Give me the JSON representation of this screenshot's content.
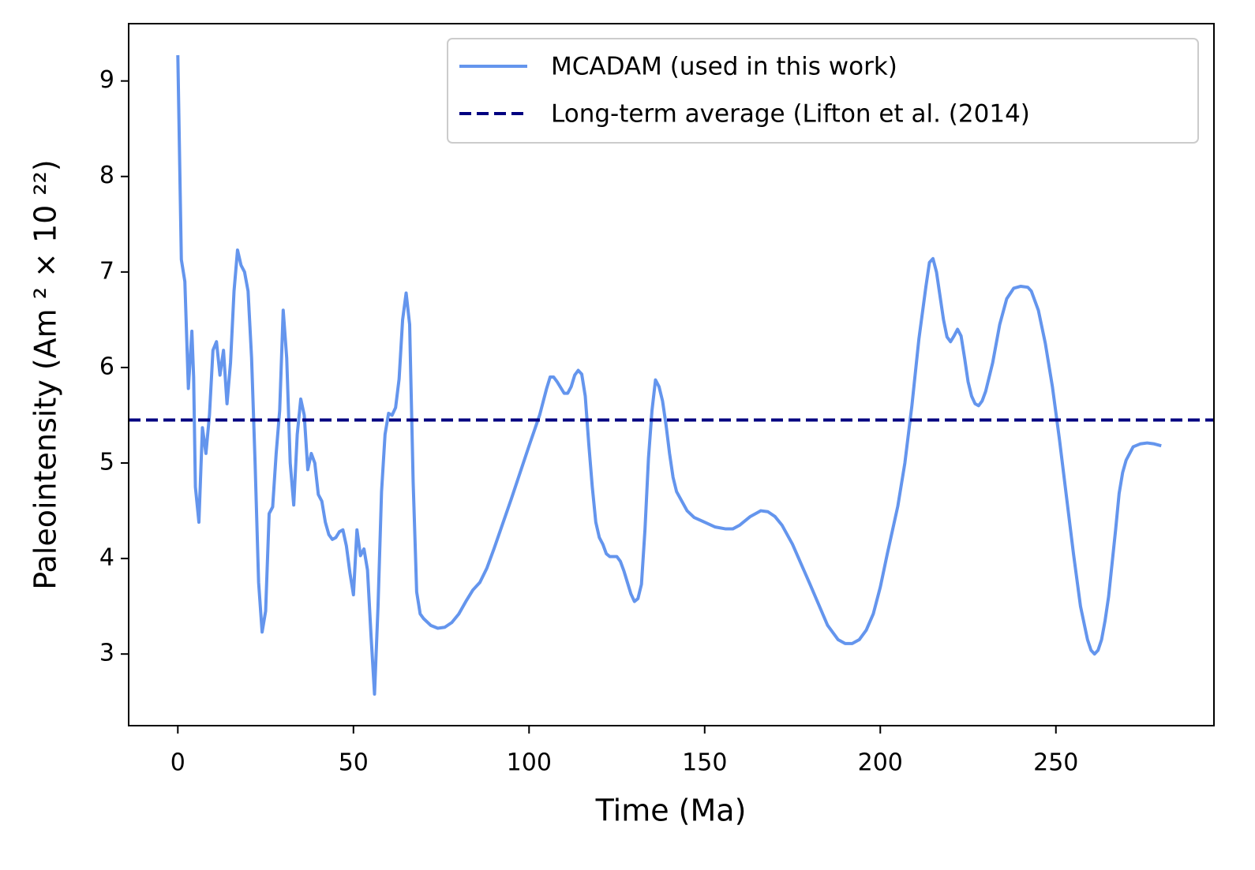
{
  "chart_data": {
    "type": "line",
    "xlabel": "Time (Ma)",
    "ylabel": "Paleointensity (Am ² × 10 ²²)",
    "x": [
      0,
      1,
      2,
      3,
      4,
      4.5,
      5,
      6,
      7,
      8,
      9,
      10,
      11,
      12,
      13,
      14,
      15,
      16,
      17,
      18,
      19,
      20,
      21,
      22,
      23,
      24,
      25,
      26,
      27,
      28,
      29,
      30,
      31,
      32,
      33,
      34,
      35,
      36,
      37,
      38,
      39,
      40,
      41,
      42,
      43,
      44,
      45,
      46,
      47,
      48,
      49,
      50,
      51,
      52,
      53,
      54,
      55,
      56,
      57,
      58,
      59,
      60,
      61,
      62,
      63,
      64,
      65,
      66,
      67,
      68,
      69,
      70,
      72,
      74,
      76,
      78,
      80,
      82,
      84,
      86,
      88,
      90,
      95,
      100,
      103,
      105,
      106,
      107,
      108,
      110,
      111,
      112,
      113,
      114,
      115,
      116,
      117,
      118,
      119,
      120,
      121,
      122,
      123,
      125,
      126,
      127,
      128,
      129,
      130,
      131,
      132,
      133,
      134,
      135,
      136,
      137,
      138,
      139,
      140,
      141,
      142,
      145,
      147,
      150,
      153,
      156,
      158,
      160,
      163,
      166,
      168,
      170,
      172,
      175,
      180,
      185,
      188,
      190,
      192,
      194,
      196,
      198,
      200,
      202,
      205,
      207,
      209,
      211,
      213,
      214,
      215,
      216,
      217,
      218,
      219,
      220,
      221,
      222,
      223,
      224,
      225,
      226,
      227,
      228,
      229,
      230,
      232,
      234,
      236,
      238,
      240,
      242,
      243,
      245,
      247,
      249,
      251,
      253,
      255,
      257,
      259,
      260,
      261,
      262,
      263,
      264,
      265,
      266,
      267,
      268,
      269,
      270,
      272,
      274,
      276,
      278,
      280
    ],
    "series": [
      {
        "name": "MCADAM (used in this work)",
        "color": "#6495ed",
        "values": [
          9.27,
          7.13,
          6.9,
          5.78,
          6.38,
          5.9,
          4.75,
          4.38,
          5.37,
          5.1,
          5.5,
          6.18,
          6.27,
          5.92,
          6.18,
          5.62,
          6.05,
          6.8,
          7.23,
          7.07,
          7.0,
          6.8,
          6.1,
          5.0,
          3.75,
          3.23,
          3.45,
          4.47,
          4.54,
          5.1,
          5.55,
          6.6,
          6.1,
          5.0,
          4.56,
          5.3,
          5.67,
          5.5,
          4.93,
          5.1,
          5.0,
          4.67,
          4.6,
          4.38,
          4.25,
          4.2,
          4.22,
          4.28,
          4.3,
          4.13,
          3.85,
          3.62,
          4.3,
          4.03,
          4.1,
          3.88,
          3.2,
          2.58,
          3.5,
          4.7,
          5.3,
          5.52,
          5.5,
          5.58,
          5.88,
          6.5,
          6.78,
          6.45,
          4.8,
          3.65,
          3.42,
          3.37,
          3.3,
          3.27,
          3.28,
          3.33,
          3.42,
          3.55,
          3.67,
          3.75,
          3.9,
          4.1,
          4.63,
          5.18,
          5.5,
          5.78,
          5.9,
          5.9,
          5.85,
          5.73,
          5.73,
          5.8,
          5.92,
          5.97,
          5.93,
          5.7,
          5.2,
          4.75,
          4.38,
          4.22,
          4.15,
          4.05,
          4.02,
          4.02,
          3.97,
          3.87,
          3.75,
          3.63,
          3.55,
          3.58,
          3.73,
          4.3,
          5.05,
          5.55,
          5.87,
          5.8,
          5.65,
          5.4,
          5.1,
          4.85,
          4.7,
          4.5,
          4.43,
          4.38,
          4.33,
          4.31,
          4.31,
          4.35,
          4.44,
          4.5,
          4.49,
          4.44,
          4.35,
          4.15,
          3.73,
          3.3,
          3.15,
          3.11,
          3.11,
          3.15,
          3.25,
          3.42,
          3.7,
          4.05,
          4.55,
          5.0,
          5.6,
          6.3,
          6.85,
          7.1,
          7.14,
          7.0,
          6.75,
          6.5,
          6.32,
          6.27,
          6.33,
          6.4,
          6.33,
          6.1,
          5.85,
          5.7,
          5.62,
          5.6,
          5.65,
          5.75,
          6.05,
          6.45,
          6.72,
          6.83,
          6.85,
          6.84,
          6.8,
          6.6,
          6.25,
          5.8,
          5.25,
          4.65,
          4.05,
          3.5,
          3.15,
          3.04,
          3.0,
          3.04,
          3.15,
          3.35,
          3.6,
          3.95,
          4.3,
          4.68,
          4.9,
          5.03,
          5.17,
          5.2,
          5.21,
          5.2,
          5.18
        ]
      }
    ],
    "hline": {
      "name": "Long-term average (Lifton et al. (2014)",
      "color": "#000080",
      "value": 5.45,
      "style": "dashed"
    },
    "xlim": [
      -14,
      295
    ],
    "ylim": [
      2.25,
      9.6
    ],
    "xticks": [
      0,
      50,
      100,
      150,
      200,
      250
    ],
    "yticks": [
      3,
      4,
      5,
      6,
      7,
      8,
      9
    ],
    "legend": "upper right",
    "grid": false
  }
}
